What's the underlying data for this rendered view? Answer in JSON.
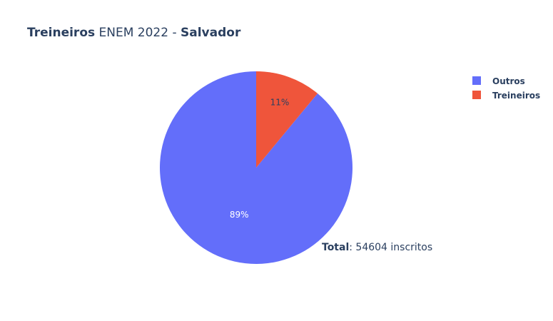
{
  "chart_data": {
    "type": "pie",
    "title": {
      "part1": "Treineiros",
      "part2": " ENEM 2022 - ",
      "part3": "Salvador"
    },
    "slices": [
      {
        "name": "Outros",
        "value": 89,
        "label": "89%",
        "color": "#636efa",
        "label_color": "#ffffff"
      },
      {
        "name": "Treineiros",
        "value": 11,
        "label": "11%",
        "color": "#ef553b",
        "label_color": "#2a3f5f"
      }
    ],
    "legend": {
      "placement": "top-right",
      "items": [
        "Outros",
        "Treineiros"
      ]
    },
    "annotation": {
      "bold": "Total",
      "text": ": 54604 inscritos"
    }
  }
}
